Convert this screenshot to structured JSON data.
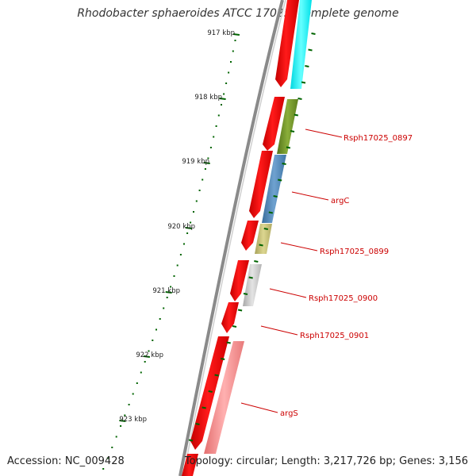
{
  "title": "Rhodobacter sphaeroides ATCC 17025, complete genome",
  "accession": "Accession: NC_009428",
  "topology": "Topology: circular; Length: 3,217,726 bp; Genes: 3,156",
  "tick_labels": [
    "917 kbp",
    "918 kbp",
    "919 kbp",
    "920 kbp",
    "921 kbp",
    "922 kbp",
    "923 kbp"
  ],
  "gene_labels": [
    "Rsph17025_0897",
    "argC",
    "Rsph17025_0899",
    "Rsph17025_0900",
    "Rsph17025_0901",
    "argS"
  ],
  "colors": {
    "backbone": "#888888",
    "forward_strand": "#ff0000",
    "cog_cyan": "#00ffff",
    "cog_olive": "#6b8e23",
    "cog_steelblue": "#4682b4",
    "cog_khaki": "#bdb76b",
    "cog_gray": "#bbbbbb",
    "cog_pink": "#f08080",
    "tick": "#006400",
    "label": "#cc0000"
  }
}
